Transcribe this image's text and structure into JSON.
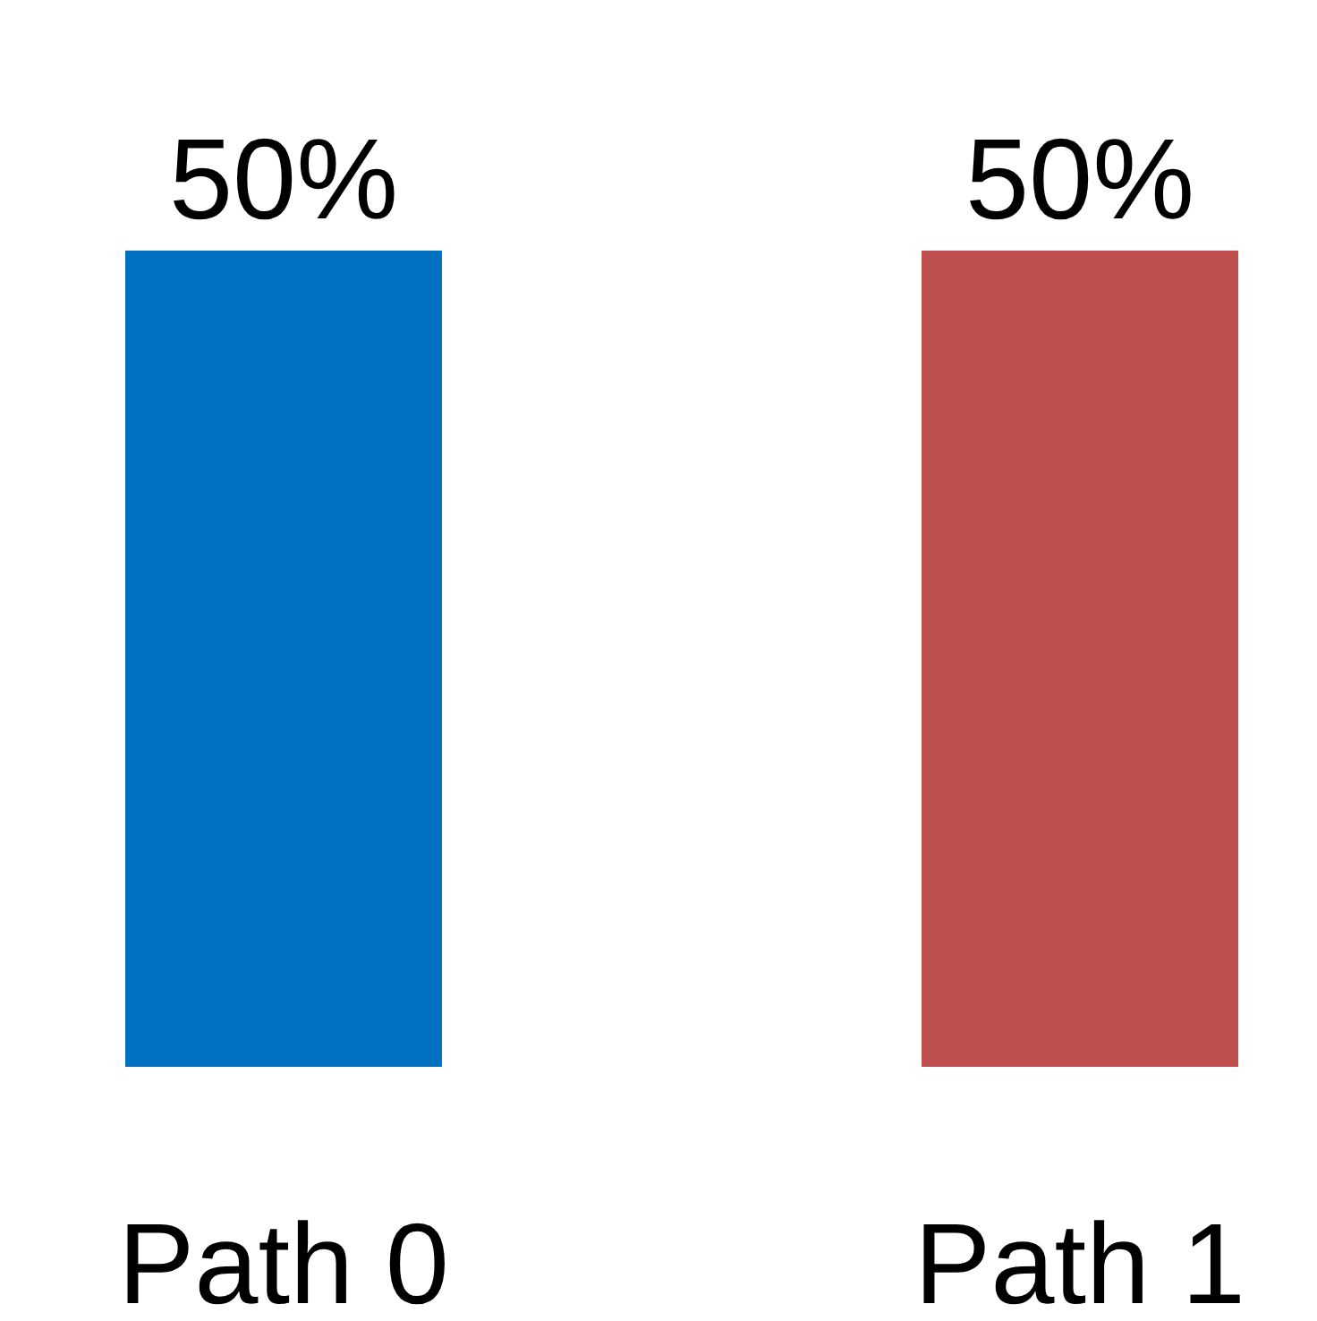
{
  "chart_data": {
    "type": "bar",
    "categories": [
      "Path 0",
      "Path 1"
    ],
    "values": [
      50,
      50
    ],
    "colors": [
      "#0070c0",
      "#c0504d"
    ],
    "value_labels": [
      "50%",
      "50%"
    ],
    "grid": false
  }
}
